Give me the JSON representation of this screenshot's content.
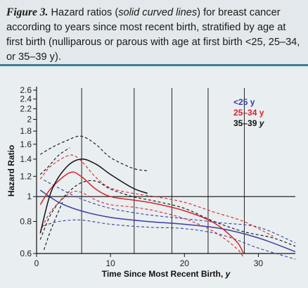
{
  "caption": {
    "label": "Figure 3.",
    "text_1": " Hazard ratios (",
    "emph": "solid curved lines",
    "text_2": ") for breast cancer according to years since most recent birth, stratified by age at first birth (nulliparous or parous with age at first birth <25, 25–34, or 35–39 y)."
  },
  "chart_data": {
    "type": "line",
    "xlabel": "Time Since Most Recent Birth, y",
    "ylabel": "Hazard Ratio",
    "xlim": [
      0,
      35
    ],
    "ylim": [
      0.6,
      2.65
    ],
    "y_scale": "log",
    "x_ticks": [
      0,
      10,
      20,
      30
    ],
    "y_ticks": [
      0.6,
      0.8,
      1,
      1.2,
      1.4,
      1.6,
      1.8,
      2,
      2.2,
      2.4,
      2.6
    ],
    "y_tick_labels": [
      "0.6",
      "0.8",
      "1",
      "1.2",
      "1.4",
      "1.6",
      "1.8",
      "2",
      "2.2",
      "2.4",
      "2.6"
    ],
    "reference_y": 1,
    "vertical_lines_x": [
      6.1,
      13.2,
      18.3,
      23.2,
      28.1
    ],
    "legend_position": "top-right",
    "legend": [
      {
        "label": "<25 y",
        "color": "#3b3fa0",
        "italic_suffix": ""
      },
      {
        "label": "25–34 y",
        "color": "#d8232a",
        "italic_suffix": ""
      },
      {
        "label": "35–39 ",
        "color": "#111111",
        "italic_suffix": "y"
      }
    ],
    "series": [
      {
        "name": "<25 y",
        "color": "#3b3fa0",
        "x": [
          0.5,
          3,
          6,
          10,
          15,
          20,
          25,
          30,
          35
        ],
        "y": [
          1.06,
          0.95,
          0.88,
          0.83,
          0.8,
          0.78,
          0.75,
          0.69,
          0.61
        ],
        "ci_lower": {
          "x": [
            1,
            3,
            6,
            10,
            15,
            20,
            25,
            30,
            35
          ],
          "y": [
            0.77,
            0.8,
            0.81,
            0.78,
            0.76,
            0.75,
            0.71,
            0.63,
            0.57
          ]
        },
        "ci_upper": {
          "x": [
            1,
            3,
            6,
            10,
            15,
            20,
            25,
            30,
            35
          ],
          "y": [
            1.16,
            1.08,
            0.98,
            0.9,
            0.85,
            0.82,
            0.79,
            0.76,
            0.66
          ]
        }
      },
      {
        "name": "25–34 y",
        "color": "#d8232a",
        "x": [
          0.5,
          2,
          4.5,
          6,
          8,
          10,
          13,
          16,
          20,
          24,
          27,
          28
        ],
        "y": [
          0.93,
          1.08,
          1.24,
          1.2,
          1.07,
          1.0,
          0.97,
          0.94,
          0.88,
          0.79,
          0.67,
          0.6
        ],
        "ci_lower": {
          "x": [
            0.5,
            2,
            4.5,
            6,
            8,
            10,
            13,
            16,
            20,
            24,
            27,
            28
          ],
          "y": [
            0.73,
            0.88,
            1.03,
            1.04,
            0.97,
            0.93,
            0.91,
            0.88,
            0.82,
            0.73,
            0.63,
            0.58
          ]
        },
        "ci_upper": {
          "x": [
            0.5,
            2,
            4.5,
            6,
            8,
            10,
            13,
            16,
            20,
            24,
            28,
            32
          ],
          "y": [
            1.17,
            1.32,
            1.45,
            1.38,
            1.19,
            1.08,
            1.03,
            1.0,
            0.95,
            0.87,
            0.8,
            0.7
          ]
        }
      },
      {
        "name": "35–39 y",
        "color": "#111111",
        "x": [
          0.5,
          2,
          4,
          6,
          8,
          10,
          13,
          15
        ],
        "y": [
          0.72,
          1.05,
          1.3,
          1.4,
          1.34,
          1.22,
          1.08,
          1.03
        ],
        "ci_lower": {
          "x": [
            0.5,
            2,
            4,
            6,
            8,
            10,
            13,
            16,
            20,
            24,
            28,
            32,
            35
          ],
          "y": [
            0.68,
            0.86,
            1.02,
            1.13,
            1.15,
            1.07,
            1.0,
            0.96,
            0.9,
            0.8,
            0.73,
            0.69,
            0.64
          ]
        },
        "ci_upper": {
          "x": [
            0.5,
            2,
            4,
            6,
            8,
            10,
            13,
            15
          ],
          "y": [
            1.46,
            1.55,
            1.65,
            1.72,
            1.6,
            1.42,
            1.29,
            1.26
          ]
        },
        "ci_extra": [
          {
            "x": [
              0.5,
              1.5,
              3,
              4.5
            ],
            "y": [
              1.22,
              1.3,
              1.45,
              1.55
            ]
          },
          {
            "x": [
              1,
              2,
              3.5
            ],
            "y": [
              0.62,
              0.75,
              0.95
            ]
          }
        ]
      }
    ]
  }
}
